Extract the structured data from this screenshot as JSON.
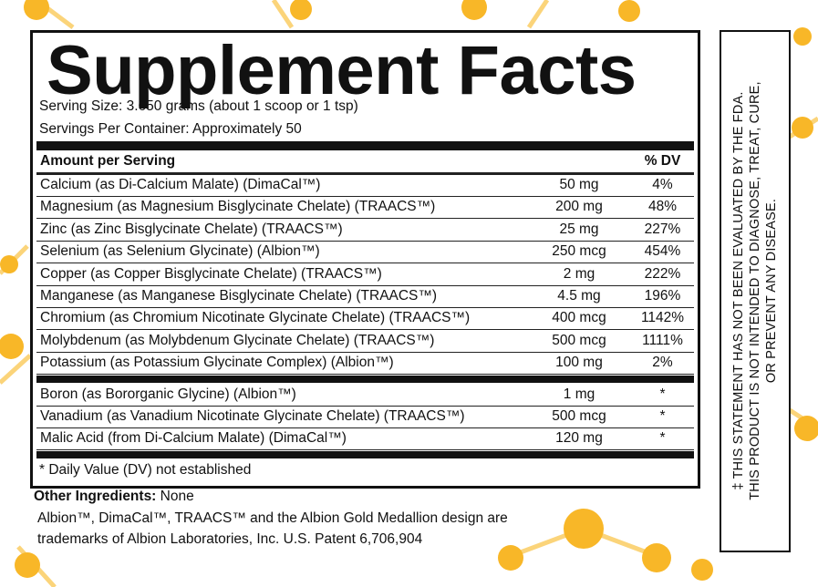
{
  "title": "Supplement Facts",
  "serving_size": "Serving Size:  3.650 grams (about 1 scoop or 1 tsp)",
  "servings_per_container": "Servings Per Container:  Approximately 50",
  "table": {
    "header": [
      "Amount per Serving",
      "% DV"
    ],
    "rows": [
      [
        "Calcium (as Di-Calcium Malate) (DimaCal™)",
        "50 mg",
        "4%"
      ],
      [
        "Magnesium (as Magnesium Bisglycinate Chelate) (TRAACS™)",
        "200 mg",
        "48%"
      ],
      [
        "Zinc (as Zinc Bisglycinate Chelate) (TRAACS™)",
        "25 mg",
        "227%"
      ],
      [
        "Selenium (as Selenium Glycinate) (Albion™)",
        "250 mcg",
        "454%"
      ],
      [
        "Copper (as Copper Bisglycinate Chelate) (TRAACS™)",
        "2 mg",
        "222%"
      ],
      [
        "Manganese (as Manganese Bisglycinate Chelate) (TRAACS™)",
        "4.5 mg",
        "196%"
      ],
      [
        "Chromium (as Chromium Nicotinate Glycinate Chelate) (TRAACS™)",
        "400 mcg",
        "1142%"
      ],
      [
        "Molybdenum (as Molybdenum Glycinate Chelate) (TRAACS™)",
        "500 mcg",
        "1111%"
      ],
      [
        "Potassium (as Potassium Glycinate Complex) (Albion™)",
        "100 mg",
        "2%"
      ]
    ],
    "rows_no_dv": [
      [
        "Boron (as Bororganic Glycine) (Albion™)",
        "1 mg",
        "*"
      ],
      [
        "Vanadium (as Vanadium Nicotinate Glycinate Chelate) (TRAACS™)",
        "500 mcg",
        "*"
      ],
      [
        "Malic Acid (from Di-Calcium Malate) (DimaCal™)",
        "120 mg",
        "*"
      ]
    ],
    "footnote": "* Daily Value (DV) not established"
  },
  "other_ingredients": {
    "label": "Other Ingredients:",
    "text": "None"
  },
  "trademark": [
    "Albion™, DimaCal™, TRAACS™ and the Albion Gold Medallion design are",
    "trademarks of Albion Laboratories, Inc.  U.S. Patent 6,706,904"
  ],
  "statement": [
    "‡ THIS STATEMENT HAS NOT BEEN EVALUATED BY THE FDA.",
    "THIS PRODUCT IS NOT INTENDED TO DIAGNOSE, TREAT, CURE,",
    "OR PREVENT ANY DISEASE."
  ]
}
